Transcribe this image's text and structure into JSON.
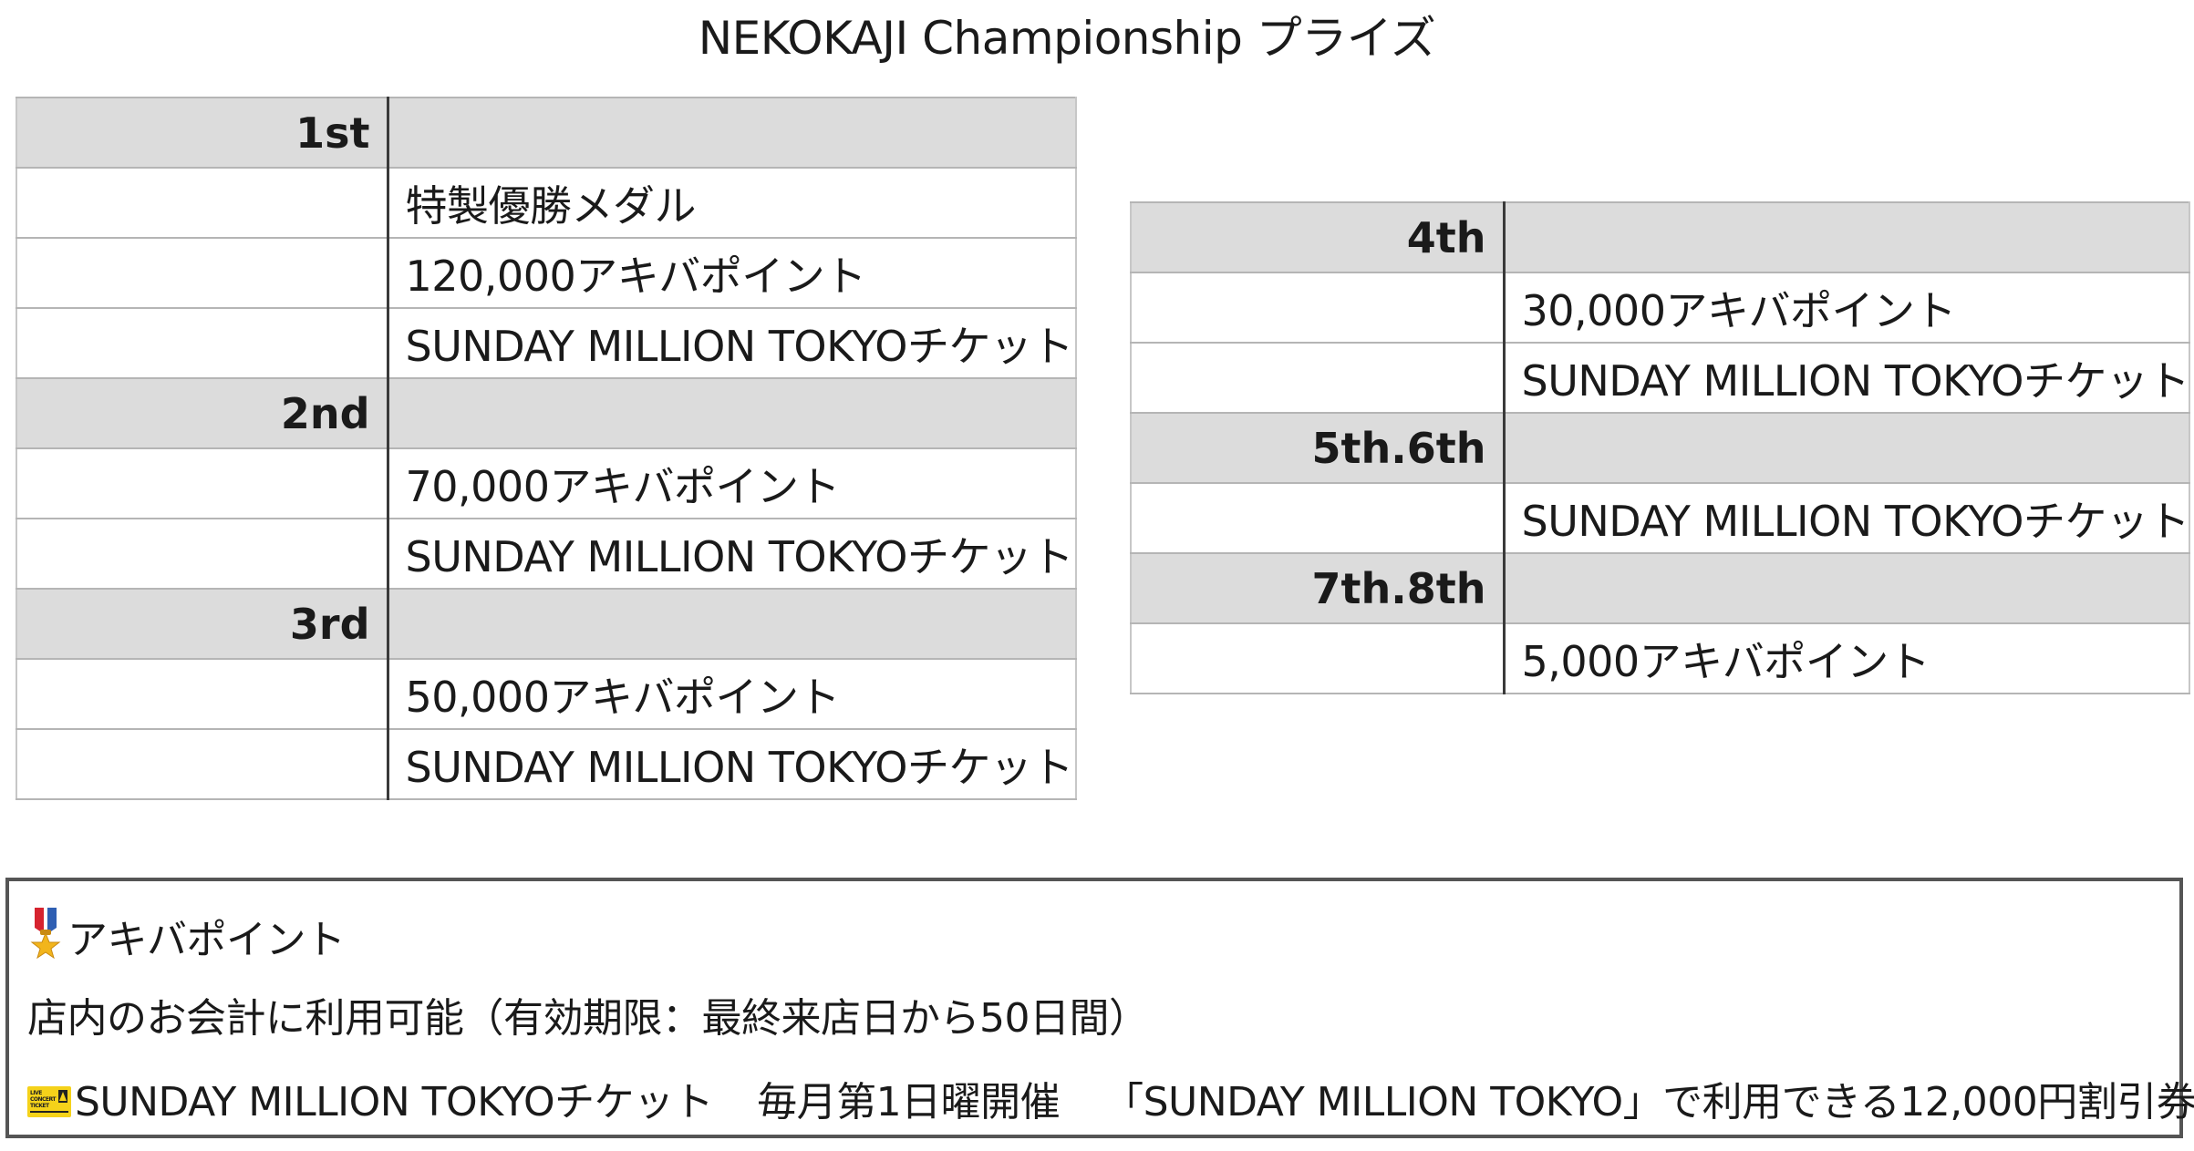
{
  "title": "NEKOKAJI Championship プライズ",
  "left_table": [
    {
      "rank": "1st",
      "items": [
        "特製優勝メダル",
        "120,000アキバポイント",
        "SUNDAY MILLION TOKYOチケット"
      ]
    },
    {
      "rank": "2nd",
      "items": [
        "70,000アキバポイント",
        "SUNDAY MILLION TOKYOチケット"
      ]
    },
    {
      "rank": "3rd",
      "items": [
        "50,000アキバポイント",
        "SUNDAY MILLION TOKYOチケット"
      ]
    }
  ],
  "right_table": [
    {
      "rank": "4th",
      "items": [
        "30,000アキバポイント",
        "SUNDAY MILLION TOKYOチケット"
      ]
    },
    {
      "rank": "5th.6th",
      "items": [
        "SUNDAY MILLION TOKYOチケット"
      ]
    },
    {
      "rank": "7th.8th",
      "items": [
        "5,000アキバポイント"
      ]
    }
  ],
  "notes": {
    "points_title": "アキバポイント",
    "points_desc": "店内のお会計に利用可能（有効期限：最終来店日から50日間）",
    "ticket_name": "SUNDAY MILLION TOKYOチケット",
    "ticket_schedule": "毎月第1日曜開催",
    "ticket_desc": "「SUNDAY MILLION TOKYO」で利用できる12,000円割引券",
    "ticket_icon_text": [
      "LIVE",
      "CONCERT",
      "TICKET"
    ]
  },
  "icons": {
    "medal": "military-medal-icon",
    "ticket": "ticket-icon"
  },
  "colors": {
    "rank_row_bg": "#dcdcdc",
    "ticket_yellow": "#f5d21a",
    "medal_ribbon_red": "#d6232f",
    "medal_gold": "#f2b51c"
  }
}
